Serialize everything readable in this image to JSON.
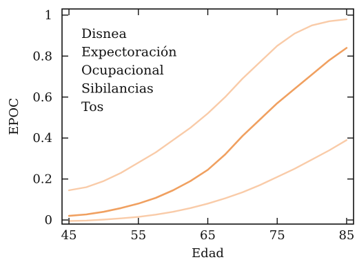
{
  "chart_data": {
    "type": "line",
    "title": "",
    "xlabel": "Edad",
    "ylabel": "EPOC",
    "xlim": [
      44,
      86
    ],
    "ylim": [
      -0.02,
      1.03
    ],
    "x_ticks": [
      45,
      55,
      65,
      75,
      85
    ],
    "x_tick_labels": [
      "45",
      "55",
      "65",
      "75",
      "85"
    ],
    "y_ticks": [
      0,
      0.2,
      0.4,
      0.6,
      0.8,
      1
    ],
    "y_tick_labels": [
      "0",
      "0.2",
      "0.4",
      "0.6",
      "0.8",
      "1"
    ],
    "grid": false,
    "annotations": [
      "Disnea",
      "Expectoración",
      "Ocupacional",
      "Sibilancias",
      "Tos"
    ],
    "series": [
      {
        "role": "upper-bound",
        "color": "#f9cba8",
        "x": [
          45,
          47.5,
          50,
          52.5,
          55,
          57.5,
          60,
          62.5,
          65,
          67.5,
          70,
          72.5,
          75,
          77.5,
          80,
          82.5,
          85
        ],
        "y": [
          0.145,
          0.16,
          0.19,
          0.23,
          0.28,
          0.33,
          0.39,
          0.45,
          0.52,
          0.6,
          0.69,
          0.77,
          0.85,
          0.91,
          0.95,
          0.97,
          0.98
        ]
      },
      {
        "role": "estimate",
        "color": "#f0a060",
        "x": [
          45,
          47.5,
          50,
          52.5,
          55,
          57.5,
          60,
          62.5,
          65,
          67.5,
          70,
          72.5,
          75,
          77.5,
          80,
          82.5,
          85
        ],
        "y": [
          0.02,
          0.027,
          0.04,
          0.058,
          0.08,
          0.108,
          0.145,
          0.19,
          0.245,
          0.32,
          0.41,
          0.49,
          0.57,
          0.64,
          0.71,
          0.78,
          0.84
        ]
      },
      {
        "role": "lower-bound",
        "color": "#f9cba8",
        "x": [
          45,
          47.5,
          50,
          52.5,
          55,
          57.5,
          60,
          62.5,
          65,
          67.5,
          70,
          72.5,
          75,
          77.5,
          80,
          82.5,
          85
        ],
        "y": [
          -0.005,
          -0.003,
          0.002,
          0.008,
          0.015,
          0.026,
          0.04,
          0.058,
          0.08,
          0.106,
          0.135,
          0.17,
          0.21,
          0.25,
          0.295,
          0.34,
          0.39
        ]
      }
    ]
  }
}
